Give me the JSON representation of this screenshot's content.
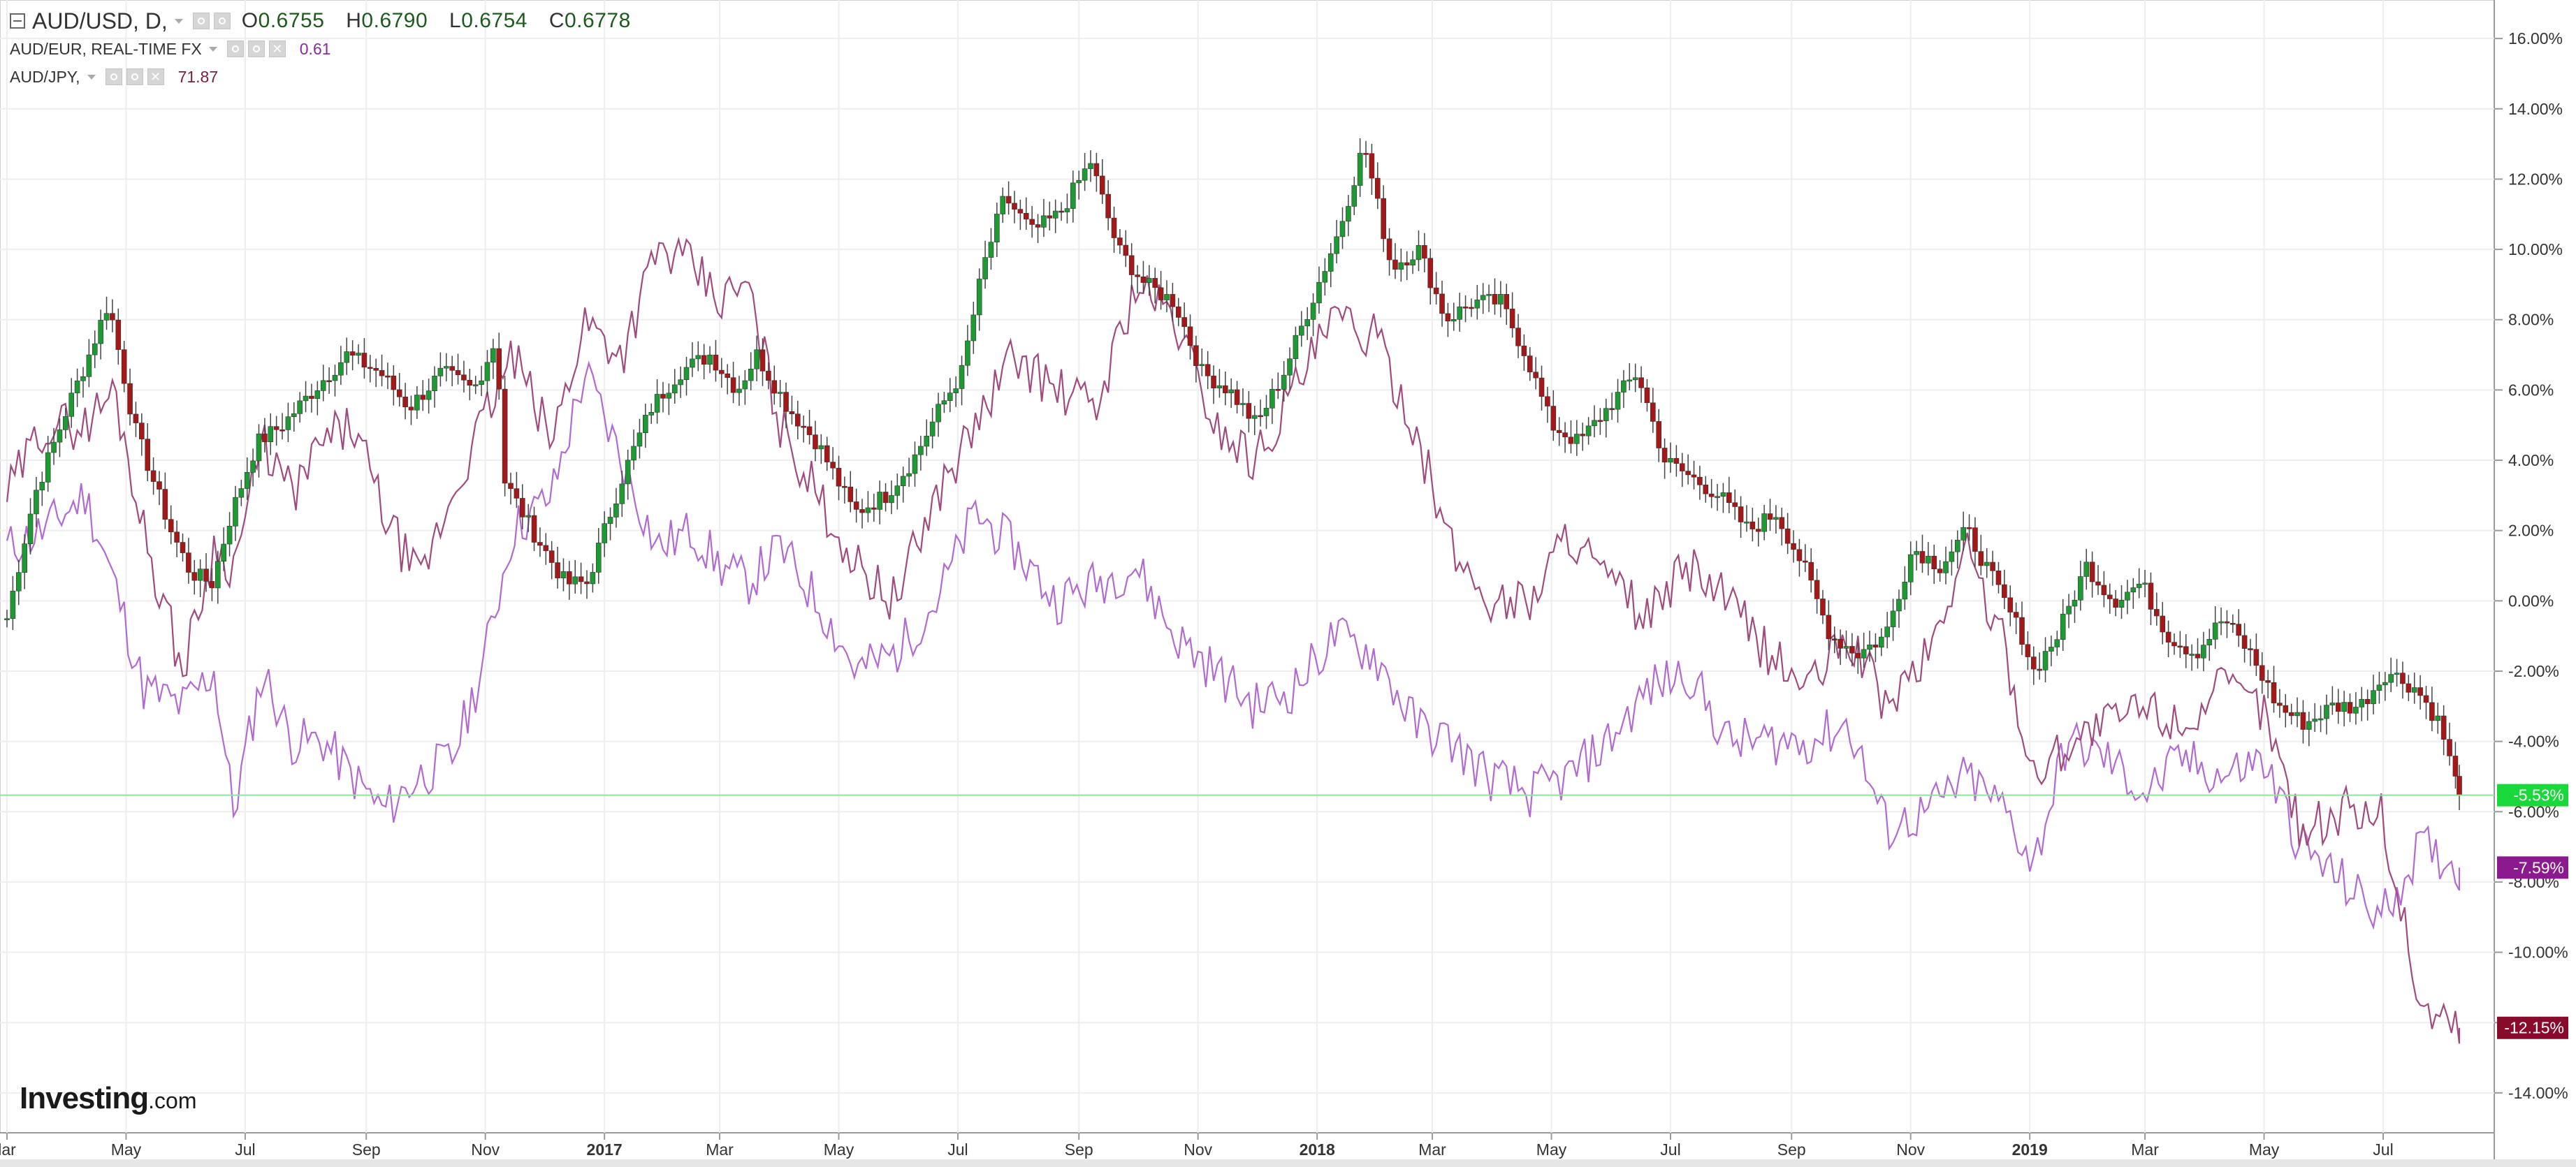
{
  "legend": {
    "main": {
      "symbol": "AUD/USD, D,",
      "open_label": "O",
      "open": "0.6755",
      "high_label": "H",
      "high": "0.6790",
      "low_label": "L",
      "low": "0.6754",
      "close_label": "C",
      "close": "0.6778"
    },
    "compare1": {
      "name": "AUD/EUR, REAL-TIME FX",
      "value": "0.61",
      "color": "#8a2b9e"
    },
    "compare2": {
      "name": "AUD/JPY,",
      "value": "71.87",
      "color": "#7a1f3d"
    }
  },
  "brand": {
    "part1": "Investing",
    "part2": ".com"
  },
  "colors": {
    "up": "#1e9a32",
    "down": "#a61717",
    "wick": "#444444",
    "eur_line": "#b26ad0",
    "jpy_line": "#a04a7e",
    "grid": "#eeeeee",
    "badge_main": "#19d93a",
    "badge_eur": "#8b1a8f",
    "badge_jpy": "#8a0a2c",
    "hline": "#8fe49b"
  },
  "chart_data": {
    "type": "line",
    "y_unit": "%",
    "ylim": [
      -14.5,
      16.5
    ],
    "y_ticks": [
      "16.00%",
      "14.00%",
      "12.00%",
      "10.00%",
      "8.00%",
      "6.00%",
      "4.00%",
      "2.00%",
      "0.00%",
      "-2.00%",
      "-4.00%",
      "-6.00%",
      "-8.00%",
      "-10.00%",
      "-12.00%",
      "-14.00%"
    ],
    "y_tick_values": [
      16,
      14,
      12,
      10,
      8,
      6,
      4,
      2,
      0,
      -2,
      -4,
      -6,
      -8,
      -10,
      -12,
      -14
    ],
    "x_range": [
      "2016-03-01",
      "2019-08-09"
    ],
    "x_ticks": [
      {
        "label": "lar",
        "date": "2016-03-01",
        "bold": false
      },
      {
        "label": "May",
        "date": "2016-05-01",
        "bold": false
      },
      {
        "label": "Jul",
        "date": "2016-07-01",
        "bold": false
      },
      {
        "label": "Sep",
        "date": "2016-09-01",
        "bold": false
      },
      {
        "label": "Nov",
        "date": "2016-11-01",
        "bold": false
      },
      {
        "label": "2017",
        "date": "2017-01-01",
        "bold": true
      },
      {
        "label": "Mar",
        "date": "2017-03-01",
        "bold": false
      },
      {
        "label": "May",
        "date": "2017-05-01",
        "bold": false
      },
      {
        "label": "Jul",
        "date": "2017-07-01",
        "bold": false
      },
      {
        "label": "Sep",
        "date": "2017-09-01",
        "bold": false
      },
      {
        "label": "Nov",
        "date": "2017-11-01",
        "bold": false
      },
      {
        "label": "2018",
        "date": "2018-01-01",
        "bold": true
      },
      {
        "label": "Mar",
        "date": "2018-03-01",
        "bold": false
      },
      {
        "label": "May",
        "date": "2018-05-01",
        "bold": false
      },
      {
        "label": "Jul",
        "date": "2018-07-01",
        "bold": false
      },
      {
        "label": "Sep",
        "date": "2018-09-01",
        "bold": false
      },
      {
        "label": "Nov",
        "date": "2018-11-01",
        "bold": false
      },
      {
        "label": "2019",
        "date": "2019-01-01",
        "bold": true
      },
      {
        "label": "Mar",
        "date": "2019-03-01",
        "bold": false
      },
      {
        "label": "May",
        "date": "2019-05-01",
        "bold": false
      },
      {
        "label": "Jul",
        "date": "2019-07-01",
        "bold": false
      }
    ],
    "series": [
      {
        "name": "AUD/USD",
        "kind": "candlestick",
        "last_label": "-5.53%",
        "last_value": -5.53,
        "x": [
          "2016-03-01",
          "2016-03-15",
          "2016-04-01",
          "2016-04-12",
          "2016-04-22",
          "2016-05-05",
          "2016-05-24",
          "2016-06-03",
          "2016-06-14",
          "2016-06-24",
          "2016-07-07",
          "2016-07-20",
          "2016-08-05",
          "2016-08-22",
          "2016-09-08",
          "2016-09-23",
          "2016-10-10",
          "2016-10-26",
          "2016-11-07",
          "2016-11-10",
          "2016-11-25",
          "2016-12-12",
          "2016-12-23",
          "2017-01-10",
          "2017-01-25",
          "2017-02-08",
          "2017-02-24",
          "2017-03-10",
          "2017-03-20",
          "2017-04-05",
          "2017-04-20",
          "2017-05-09",
          "2017-05-25",
          "2017-06-08",
          "2017-06-22",
          "2017-07-03",
          "2017-07-14",
          "2017-07-25",
          "2017-08-08",
          "2017-08-22",
          "2017-09-07",
          "2017-09-21",
          "2017-10-05",
          "2017-10-20",
          "2017-11-03",
          "2017-11-17",
          "2017-12-01",
          "2017-12-15",
          "2017-12-29",
          "2018-01-12",
          "2018-01-25",
          "2018-02-08",
          "2018-02-22",
          "2018-03-08",
          "2018-03-22",
          "2018-04-05",
          "2018-04-18",
          "2018-05-01",
          "2018-05-15",
          "2018-05-30",
          "2018-06-14",
          "2018-06-28",
          "2018-07-12",
          "2018-07-26",
          "2018-08-10",
          "2018-08-24",
          "2018-09-07",
          "2018-09-21",
          "2018-10-05",
          "2018-10-19",
          "2018-11-02",
          "2018-11-16",
          "2018-11-30",
          "2018-12-14",
          "2018-12-28",
          "2019-01-03",
          "2019-01-15",
          "2019-01-30",
          "2019-02-13",
          "2019-02-27",
          "2019-03-13",
          "2019-03-27",
          "2019-04-10",
          "2019-04-24",
          "2019-05-08",
          "2019-05-22",
          "2019-06-05",
          "2019-06-19",
          "2019-07-03",
          "2019-07-18",
          "2019-07-30",
          "2019-08-09"
        ],
        "values": [
          -0.5,
          3.0,
          5.5,
          7.0,
          8.5,
          5.0,
          2.0,
          0.8,
          0.5,
          2.5,
          4.5,
          5.0,
          6.0,
          7.0,
          6.5,
          5.5,
          6.5,
          6.0,
          7.5,
          3.5,
          2.0,
          0.5,
          0.5,
          3.5,
          5.5,
          6.5,
          7.0,
          6.0,
          7.0,
          5.5,
          4.5,
          2.5,
          3.0,
          4.0,
          5.5,
          6.5,
          9.5,
          11.5,
          10.5,
          11.0,
          12.5,
          10.0,
          9.0,
          8.5,
          6.5,
          6.0,
          5.0,
          6.5,
          8.5,
          10.5,
          13.0,
          9.5,
          10.0,
          8.0,
          8.5,
          8.5,
          7.0,
          5.0,
          4.5,
          5.5,
          6.5,
          4.0,
          3.5,
          3.0,
          2.0,
          2.5,
          1.0,
          -1.0,
          -1.5,
          -1.0,
          1.5,
          1.0,
          2.0,
          0.5,
          -1.0,
          -2.0,
          -1.0,
          1.0,
          0.0,
          0.5,
          -1.0,
          -1.5,
          -0.5,
          -1.5,
          -3.0,
          -3.5,
          -3.0,
          -3.0,
          -2.0,
          -2.5,
          -3.5,
          -5.53
        ]
      },
      {
        "name": "AUD/EUR",
        "kind": "line",
        "last_label": "-7.59%",
        "last_value": -7.59,
        "x": [
          "2016-03-01",
          "2016-03-20",
          "2016-04-10",
          "2016-04-25",
          "2016-05-10",
          "2016-05-30",
          "2016-06-15",
          "2016-06-25",
          "2016-07-10",
          "2016-07-25",
          "2016-08-10",
          "2016-08-25",
          "2016-09-10",
          "2016-09-28",
          "2016-10-15",
          "2016-10-30",
          "2016-11-15",
          "2016-12-05",
          "2016-12-22",
          "2017-01-10",
          "2017-01-28",
          "2017-02-15",
          "2017-03-01",
          "2017-03-15",
          "2017-04-01",
          "2017-04-20",
          "2017-05-10",
          "2017-05-30",
          "2017-06-20",
          "2017-07-10",
          "2017-07-30",
          "2017-08-20",
          "2017-09-10",
          "2017-09-30",
          "2017-10-20",
          "2017-11-10",
          "2017-11-30",
          "2017-12-20",
          "2018-01-10",
          "2018-01-30",
          "2018-02-20",
          "2018-03-10",
          "2018-03-30",
          "2018-04-20",
          "2018-05-10",
          "2018-05-30",
          "2018-06-20",
          "2018-07-10",
          "2018-07-30",
          "2018-08-20",
          "2018-09-10",
          "2018-09-30",
          "2018-10-20",
          "2018-11-10",
          "2018-11-30",
          "2018-12-20",
          "2019-01-03",
          "2019-01-20",
          "2019-02-10",
          "2019-03-01",
          "2019-03-20",
          "2019-04-10",
          "2019-04-30",
          "2019-05-20",
          "2019-06-10",
          "2019-06-30",
          "2019-07-20",
          "2019-08-09"
        ],
        "values": [
          1.5,
          2.0,
          3.0,
          0.5,
          -2.5,
          -3.0,
          -2.0,
          -6.0,
          -2.0,
          -4.0,
          -4.0,
          -5.0,
          -6.0,
          -5.0,
          -4.5,
          -2.0,
          2.0,
          3.0,
          6.5,
          4.0,
          1.5,
          2.0,
          1.0,
          0.5,
          1.5,
          0.0,
          -2.0,
          -1.5,
          0.0,
          2.5,
          1.5,
          0.0,
          0.5,
          1.0,
          -1.0,
          -2.0,
          -3.0,
          -2.5,
          -1.0,
          -1.5,
          -3.5,
          -4.0,
          -5.0,
          -5.5,
          -5.0,
          -4.0,
          -2.5,
          -2.0,
          -4.0,
          -4.0,
          -4.0,
          -3.5,
          -6.5,
          -6.0,
          -5.0,
          -6.0,
          -7.5,
          -4.0,
          -4.5,
          -5.5,
          -4.5,
          -5.0,
          -4.5,
          -7.0,
          -8.0,
          -9.0,
          -7.0,
          -7.59
        ]
      },
      {
        "name": "AUD/JPY",
        "kind": "line",
        "last_label": "-12.15%",
        "last_value": -12.15,
        "x": [
          "2016-03-01",
          "2016-03-20",
          "2016-04-10",
          "2016-04-25",
          "2016-05-10",
          "2016-05-30",
          "2016-06-15",
          "2016-06-25",
          "2016-07-10",
          "2016-07-25",
          "2016-08-10",
          "2016-08-25",
          "2016-09-10",
          "2016-09-28",
          "2016-10-15",
          "2016-10-30",
          "2016-11-15",
          "2016-12-05",
          "2016-12-22",
          "2017-01-10",
          "2017-01-28",
          "2017-02-15",
          "2017-03-01",
          "2017-03-15",
          "2017-04-01",
          "2017-04-20",
          "2017-05-10",
          "2017-05-30",
          "2017-06-20",
          "2017-07-10",
          "2017-07-30",
          "2017-08-20",
          "2017-09-10",
          "2017-09-30",
          "2017-10-20",
          "2017-11-10",
          "2017-11-30",
          "2017-12-20",
          "2018-01-10",
          "2018-01-30",
          "2018-02-20",
          "2018-03-10",
          "2018-03-30",
          "2018-04-20",
          "2018-05-10",
          "2018-05-30",
          "2018-06-20",
          "2018-07-10",
          "2018-07-30",
          "2018-08-20",
          "2018-09-10",
          "2018-09-30",
          "2018-10-20",
          "2018-11-10",
          "2018-11-30",
          "2018-12-20",
          "2019-01-03",
          "2019-01-20",
          "2019-02-10",
          "2019-03-01",
          "2019-03-20",
          "2019-04-10",
          "2019-04-30",
          "2019-05-20",
          "2019-06-10",
          "2019-06-30",
          "2019-07-20",
          "2019-08-09"
        ],
        "values": [
          3.0,
          5.0,
          5.0,
          6.0,
          2.0,
          -2.0,
          1.5,
          1.0,
          4.5,
          3.0,
          4.5,
          5.0,
          2.5,
          0.5,
          3.0,
          5.0,
          7.0,
          4.5,
          8.0,
          7.0,
          10.0,
          9.5,
          8.5,
          9.0,
          5.0,
          3.0,
          1.0,
          0.0,
          3.0,
          5.0,
          7.0,
          6.0,
          5.5,
          9.0,
          8.0,
          5.0,
          4.0,
          6.0,
          8.0,
          7.5,
          5.0,
          1.5,
          0.0,
          0.0,
          2.0,
          0.5,
          -0.5,
          1.0,
          0.0,
          -1.5,
          -2.5,
          -1.0,
          -3.0,
          -1.5,
          1.5,
          -1.5,
          -5.0,
          -4.0,
          -3.5,
          -3.0,
          -3.5,
          -2.5,
          -3.0,
          -6.5,
          -6.0,
          -6.0,
          -11.5,
          -12.15
        ]
      }
    ]
  }
}
